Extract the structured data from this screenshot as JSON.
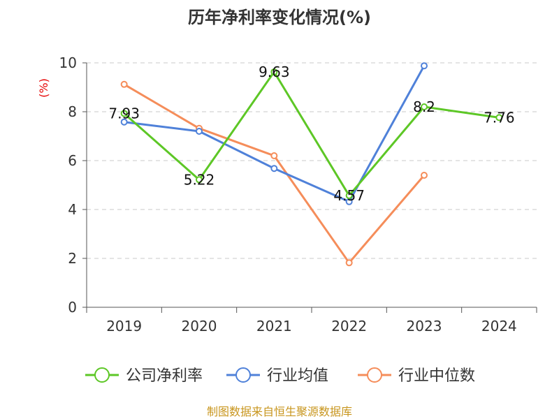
{
  "chart_data": {
    "type": "line",
    "title": "历年净利率变化情况(%)",
    "ylabel": "(%)",
    "xlabel": "",
    "categories": [
      "2019",
      "2020",
      "2021",
      "2022",
      "2023",
      "2024"
    ],
    "ylim": [
      0,
      10
    ],
    "yticks": [
      0,
      2,
      4,
      6,
      8,
      10
    ],
    "grid": true,
    "legend_position": "bottom",
    "series": [
      {
        "name": "公司净利率",
        "color": "#5dc726",
        "values": [
          7.93,
          5.22,
          9.63,
          4.57,
          8.2,
          7.76
        ],
        "labels": [
          "7.93",
          "5.22",
          "9.63",
          "4.57",
          "8.2",
          "7.76"
        ]
      },
      {
        "name": "行业均值",
        "color": "#4f81d9",
        "values": [
          7.58,
          7.2,
          5.68,
          4.32,
          9.88,
          null
        ]
      },
      {
        "name": "行业中位数",
        "color": "#f58d5a",
        "values": [
          9.12,
          7.32,
          6.2,
          1.82,
          5.4,
          null
        ]
      }
    ]
  },
  "source": "制图数据来自恒生聚源数据库"
}
